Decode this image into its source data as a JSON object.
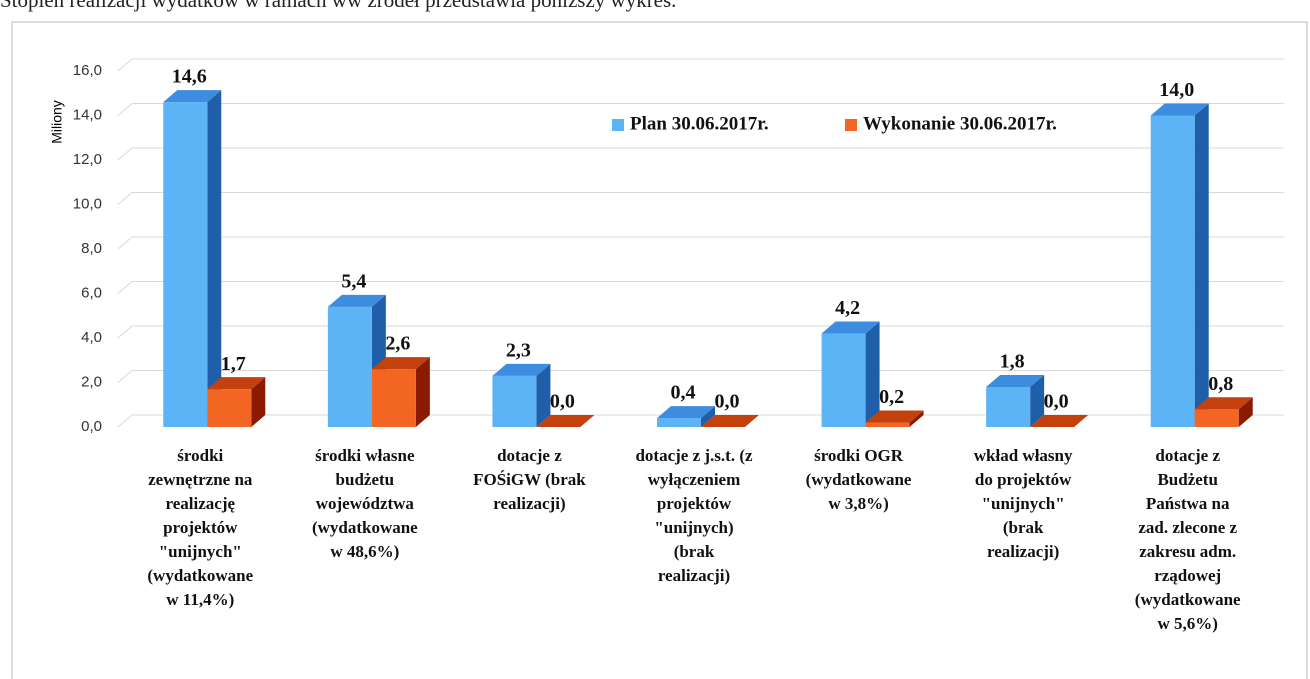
{
  "header_text": "Stopień realizacji wydatków w ramach ww źródeł przedstawia poniższy wykres.",
  "chart_data": {
    "type": "bar3d",
    "y_axis_label": "Miliony",
    "categories": [
      "środki\nzewnętrzne na\nrealizację\nprojektów\n\"unijnych\"\n(wydatkowane\nw 11,4%)",
      "środki własne\nbudżetu\nwojewództwa\n(wydatkowane\nw 48,6%)",
      "dotacje z\nFOŚiGW (brak\nrealizacji)",
      "dotacje z j.s.t. (z\nwyłączeniem\nprojektów\n\"unijnych)\n(brak\nrealizacji)",
      "środki OGR\n(wydatkowane\nw 3,8%)",
      "wkład własny\ndo projektów\n\"unijnych\"\n(brak\nrealizacji)",
      "dotacje z\nBudżetu\nPaństwa na\nzad. zlecone z\nzakresu adm.\nrządowej\n(wydatkowane\nw 5,6%)"
    ],
    "series": [
      {
        "name": "Plan 30.06.2017r.",
        "color": "#5cb3f5",
        "side_color": "#1f5ea8",
        "top_color": "#3c8de0",
        "values": [
          14.6,
          5.4,
          2.3,
          0.4,
          4.2,
          1.8,
          14.0
        ],
        "value_labels": [
          "14,6",
          "5,4",
          "2,3",
          "0,4",
          "4,2",
          "1,8",
          "14,0"
        ]
      },
      {
        "name": "Wykonanie 30.06.2017r.",
        "color": "#f26522",
        "side_color": "#8a1a00",
        "top_color": "#c2410c",
        "values": [
          1.7,
          2.6,
          0,
          0,
          0.2,
          0,
          0.8
        ],
        "value_labels": [
          "1,7",
          "2,6",
          "0,0",
          "0,0",
          "0,2",
          "0,0",
          "0,8"
        ]
      }
    ],
    "ylim": [
      0,
      16
    ],
    "yticks": [
      {
        "value": 0,
        "label": "0,0"
      },
      {
        "value": 2,
        "label": "2,0"
      },
      {
        "value": 4,
        "label": "4,0"
      },
      {
        "value": 6,
        "label": "6,0"
      },
      {
        "value": 8,
        "label": "8,0"
      },
      {
        "value": 10,
        "label": "10,0"
      },
      {
        "value": 12,
        "label": "12,0"
      },
      {
        "value": 14,
        "label": "14,0"
      },
      {
        "value": 16,
        "label": "16,0"
      }
    ],
    "grid": true
  }
}
